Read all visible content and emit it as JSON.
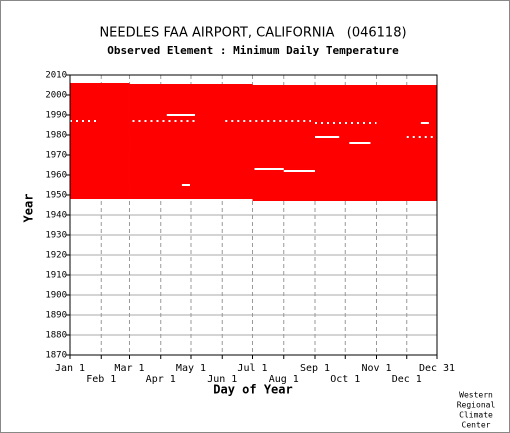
{
  "chart_data": {
    "type": "availability",
    "title": "NEEDLES FAA AIRPORT, CALIFORNIA   (046118)",
    "subtitle": "Observed Element : Minimum Daily Temperature",
    "xlabel": "Day of Year",
    "ylabel": "Year",
    "credit": [
      "Western",
      "Regional",
      "Climate",
      "Center"
    ],
    "color": "#ff0000",
    "xlim": [
      1,
      365
    ],
    "ylim": [
      1870,
      2010
    ],
    "xticks": [
      {
        "value": 1,
        "label": "Jan 1"
      },
      {
        "value": 32,
        "label": "Feb 1"
      },
      {
        "value": 60,
        "label": "Mar 1"
      },
      {
        "value": 91,
        "label": "Apr 1"
      },
      {
        "value": 121,
        "label": "May 1"
      },
      {
        "value": 152,
        "label": "Jun 1"
      },
      {
        "value": 182,
        "label": "Jul 1"
      },
      {
        "value": 213,
        "label": "Aug 1"
      },
      {
        "value": 244,
        "label": "Sep 1"
      },
      {
        "value": 274,
        "label": "Oct 1"
      },
      {
        "value": 305,
        "label": "Nov 1"
      },
      {
        "value": 335,
        "label": "Dec 1"
      },
      {
        "value": 365,
        "label": "Dec 31"
      }
    ],
    "yticks": [
      1870,
      1880,
      1890,
      1900,
      1910,
      1920,
      1930,
      1940,
      1950,
      1960,
      1970,
      1980,
      1990,
      2000,
      2010
    ],
    "blocks": [
      {
        "x": [
          1,
          60
        ],
        "y": [
          1948,
          2006
        ]
      },
      {
        "x": [
          60,
          182
        ],
        "y": [
          1948,
          2005.5
        ]
      },
      {
        "x": [
          182,
          365
        ],
        "y": [
          1947,
          2005
        ]
      }
    ],
    "gaps": [
      {
        "x": [
          97,
          125
        ],
        "year": 1990
      },
      {
        "x": [
          112,
          120
        ],
        "year": 1955
      },
      {
        "x": [
          184,
          213
        ],
        "year": 1963
      },
      {
        "x": [
          213,
          244
        ],
        "year": 1962
      },
      {
        "x": [
          244,
          268
        ],
        "year": 1979
      },
      {
        "x": [
          278,
          299
        ],
        "year": 1976
      },
      {
        "x": [
          349,
          357
        ],
        "year": 1986
      }
    ],
    "dotted_gaps": [
      {
        "x": [
          1,
          28
        ],
        "year": 1987
      },
      {
        "x": [
          63,
          125
        ],
        "year": 1987
      },
      {
        "x": [
          155,
          240
        ],
        "year": 1987
      },
      {
        "x": [
          244,
          305
        ],
        "year": 1986
      },
      {
        "x": [
          335,
          365
        ],
        "year": 1979
      }
    ]
  }
}
